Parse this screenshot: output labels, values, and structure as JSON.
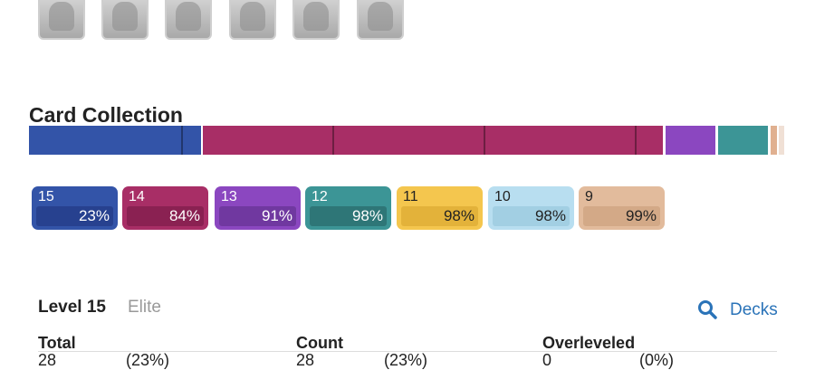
{
  "section": {
    "title": "Card Collection"
  },
  "levels": [
    {
      "level": "15",
      "percent": "23%"
    },
    {
      "level": "14",
      "percent": "84%"
    },
    {
      "level": "13",
      "percent": "91%"
    },
    {
      "level": "12",
      "percent": "98%"
    },
    {
      "level": "11",
      "percent": "98%"
    },
    {
      "level": "10",
      "percent": "98%"
    },
    {
      "level": "9",
      "percent": "99%"
    }
  ],
  "filter": {
    "level": "Level 15",
    "tier": "Elite",
    "action": "Decks"
  },
  "table": {
    "headers": [
      "Total",
      "Count",
      "Overleveled"
    ],
    "rows": [
      [
        "28",
        "(23%)",
        "28",
        "(23%)",
        "0",
        "(0%)"
      ]
    ]
  }
}
